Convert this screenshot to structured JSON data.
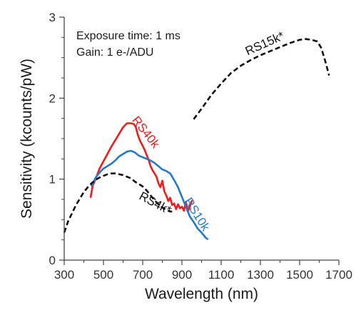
{
  "chart_data": {
    "type": "line",
    "title": "",
    "xlabel": "Wavelength (nm)",
    "ylabel": "Sensitivity (kcounts/pW)",
    "xlim": [
      300,
      1700
    ],
    "ylim": [
      0,
      3
    ],
    "xticks": [
      300,
      500,
      700,
      900,
      1100,
      1300,
      1500,
      1700
    ],
    "yticks": [
      0,
      1,
      2,
      3
    ],
    "grid": false,
    "legend": "none",
    "annotations": [
      "Exposure time: 1 ms",
      "Gain: 1 e-/ADU"
    ],
    "series": [
      {
        "name": "RS40k",
        "color": "#ee1c1c",
        "dash": "solid",
        "x": [
          435,
          445,
          460,
          480,
          500,
          520,
          540,
          560,
          580,
          600,
          620,
          640,
          655,
          665,
          675,
          685,
          700,
          710,
          720,
          730,
          740,
          750,
          760,
          770,
          780,
          790,
          800,
          810,
          820,
          830,
          840,
          850,
          860,
          870,
          880,
          890,
          900,
          910,
          920,
          930,
          940,
          950
        ],
        "y": [
          0.78,
          0.92,
          1.0,
          1.13,
          1.22,
          1.31,
          1.4,
          1.48,
          1.56,
          1.64,
          1.69,
          1.69,
          1.68,
          1.64,
          1.55,
          1.48,
          1.41,
          1.36,
          1.3,
          1.24,
          1.16,
          1.11,
          1.07,
          1.03,
          0.95,
          0.9,
          0.98,
          0.85,
          0.8,
          0.73,
          0.77,
          0.68,
          0.7,
          0.63,
          0.69,
          0.64,
          0.66,
          0.61,
          0.72,
          0.6,
          0.66,
          0.73
        ]
      },
      {
        "name": "RS10k",
        "color": "#2479c9",
        "dash": "solid",
        "x": [
          440,
          460,
          480,
          500,
          520,
          540,
          560,
          580,
          600,
          620,
          640,
          660,
          680,
          700,
          720,
          740,
          760,
          780,
          800,
          820,
          840,
          860,
          880,
          900,
          920,
          940,
          960,
          980,
          1000,
          1020,
          1030
        ],
        "y": [
          0.92,
          1.02,
          1.08,
          1.13,
          1.16,
          1.19,
          1.23,
          1.28,
          1.31,
          1.34,
          1.35,
          1.33,
          1.29,
          1.27,
          1.25,
          1.23,
          1.2,
          1.16,
          1.12,
          1.1,
          1.07,
          0.99,
          0.9,
          0.78,
          0.66,
          0.54,
          0.47,
          0.39,
          0.34,
          0.28,
          0.26
        ]
      },
      {
        "name": "RS4k*",
        "color": "#111111",
        "dash": "dashed",
        "x": [
          300,
          320,
          340,
          360,
          380,
          400,
          420,
          440,
          460,
          480,
          500,
          520,
          540,
          560,
          580,
          600,
          620,
          640,
          660,
          680,
          700,
          720,
          740,
          760,
          780,
          800,
          820,
          840,
          850
        ],
        "y": [
          0.34,
          0.48,
          0.58,
          0.68,
          0.76,
          0.84,
          0.9,
          0.95,
          0.99,
          1.02,
          1.04,
          1.06,
          1.07,
          1.07,
          1.06,
          1.05,
          1.03,
          1.01,
          0.97,
          0.94,
          0.91,
          0.86,
          0.8,
          0.74,
          0.69,
          0.65,
          0.62,
          0.6,
          0.6
        ]
      },
      {
        "name": "RS15k*",
        "color": "#111111",
        "dash": "dashed",
        "x": [
          960,
          1000,
          1050,
          1100,
          1150,
          1200,
          1250,
          1300,
          1350,
          1400,
          1450,
          1500,
          1530,
          1560,
          1590,
          1610,
          1630,
          1650
        ],
        "y": [
          1.74,
          1.87,
          2.04,
          2.18,
          2.31,
          2.4,
          2.47,
          2.53,
          2.58,
          2.63,
          2.68,
          2.72,
          2.73,
          2.72,
          2.7,
          2.62,
          2.46,
          2.28
        ]
      }
    ]
  }
}
